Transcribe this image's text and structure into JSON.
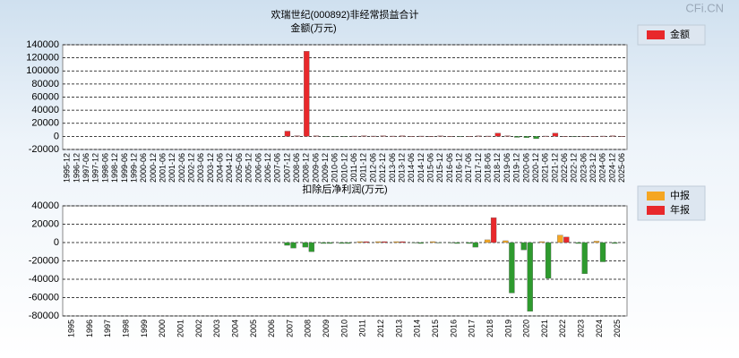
{
  "watermark": "CFi.CN",
  "chart_data": [
    {
      "type": "bar",
      "title": "欢瑞世纪(000892)非经常损益合计",
      "subtitle": "金额(万元)",
      "categories": [
        "1995-12",
        "1996-12",
        "1997-06",
        "1997-12",
        "1998-06",
        "1998-12",
        "1999-06",
        "1999-12",
        "2000-06",
        "2000-12",
        "2001-06",
        "2001-12",
        "2002-06",
        "2002-12",
        "2003-06",
        "2003-12",
        "2004-06",
        "2004-12",
        "2005-06",
        "2005-12",
        "2006-06",
        "2006-12",
        "2007-06",
        "2007-12",
        "2008-06",
        "2008-12",
        "2009-06",
        "2009-12",
        "2010-06",
        "2010-12",
        "2011-06",
        "2011-12",
        "2012-06",
        "2012-12",
        "2013-06",
        "2013-12",
        "2014-06",
        "2014-12",
        "2015-06",
        "2015-12",
        "2016-06",
        "2016-12",
        "2017-06",
        "2017-12",
        "2018-06",
        "2018-12",
        "2019-06",
        "2019-12",
        "2020-06",
        "2020-12",
        "2021-06",
        "2021-12",
        "2022-06",
        "2022-12",
        "2023-06",
        "2023-12",
        "2024-06",
        "2024-12",
        "2025-06"
      ],
      "series": [
        {
          "name": "金额",
          "color": "#e8282b",
          "negative_color": "#2e9a2e",
          "values": [
            null,
            null,
            null,
            null,
            null,
            null,
            null,
            null,
            null,
            null,
            null,
            null,
            null,
            null,
            null,
            null,
            null,
            null,
            null,
            null,
            null,
            null,
            null,
            8000,
            1000,
            130000,
            1000,
            -500,
            -300,
            -500,
            500,
            1000,
            500,
            1000,
            500,
            1000,
            300,
            500,
            200,
            800,
            200,
            -500,
            200,
            800,
            500,
            5000,
            1000,
            -1500,
            -2000,
            -3500,
            500,
            5000,
            200,
            -500,
            200,
            300,
            500,
            1000,
            300
          ]
        }
      ],
      "ylim": [
        -20000,
        140000
      ],
      "yticks": [
        -20000,
        0,
        20000,
        40000,
        60000,
        80000,
        100000,
        120000,
        140000
      ],
      "grid": true
    },
    {
      "type": "grouped_bar",
      "title": "扣除后净利润(万元)",
      "categories": [
        "1995",
        "1996",
        "1997",
        "1998",
        "1999",
        "2000",
        "2001",
        "2002",
        "2003",
        "2004",
        "2005",
        "2006",
        "2007",
        "2008",
        "2009",
        "2010",
        "2011",
        "2012",
        "2013",
        "2014",
        "2015",
        "2016",
        "2017",
        "2018",
        "2019",
        "2020",
        "2021",
        "2022",
        "2023",
        "2024",
        "2025"
      ],
      "series": [
        {
          "name": "中报",
          "color": "#f5a623",
          "negative_color": "#2e9a2e",
          "values": [
            null,
            null,
            null,
            null,
            null,
            null,
            null,
            null,
            null,
            null,
            null,
            null,
            -3000,
            -5000,
            -1000,
            -1000,
            1000,
            1000,
            1000,
            -500,
            1000,
            -500,
            -1000,
            3000,
            2000,
            -8000,
            1000,
            8000,
            -1000,
            1500,
            -1000
          ]
        },
        {
          "name": "年报",
          "color": "#e8282b",
          "negative_color": "#2e9a2e",
          "values": [
            null,
            null,
            null,
            null,
            null,
            null,
            null,
            null,
            null,
            null,
            null,
            null,
            -6000,
            -10000,
            -1000,
            -1000,
            1000,
            1000,
            1000,
            -1000,
            -500,
            -1000,
            -5000,
            27000,
            -55000,
            -75000,
            -39000,
            6000,
            -34000,
            -21000,
            null
          ]
        }
      ],
      "ylim": [
        -80000,
        40000
      ],
      "yticks": [
        -80000,
        -60000,
        -40000,
        -20000,
        0,
        20000,
        40000
      ],
      "grid": true
    }
  ]
}
